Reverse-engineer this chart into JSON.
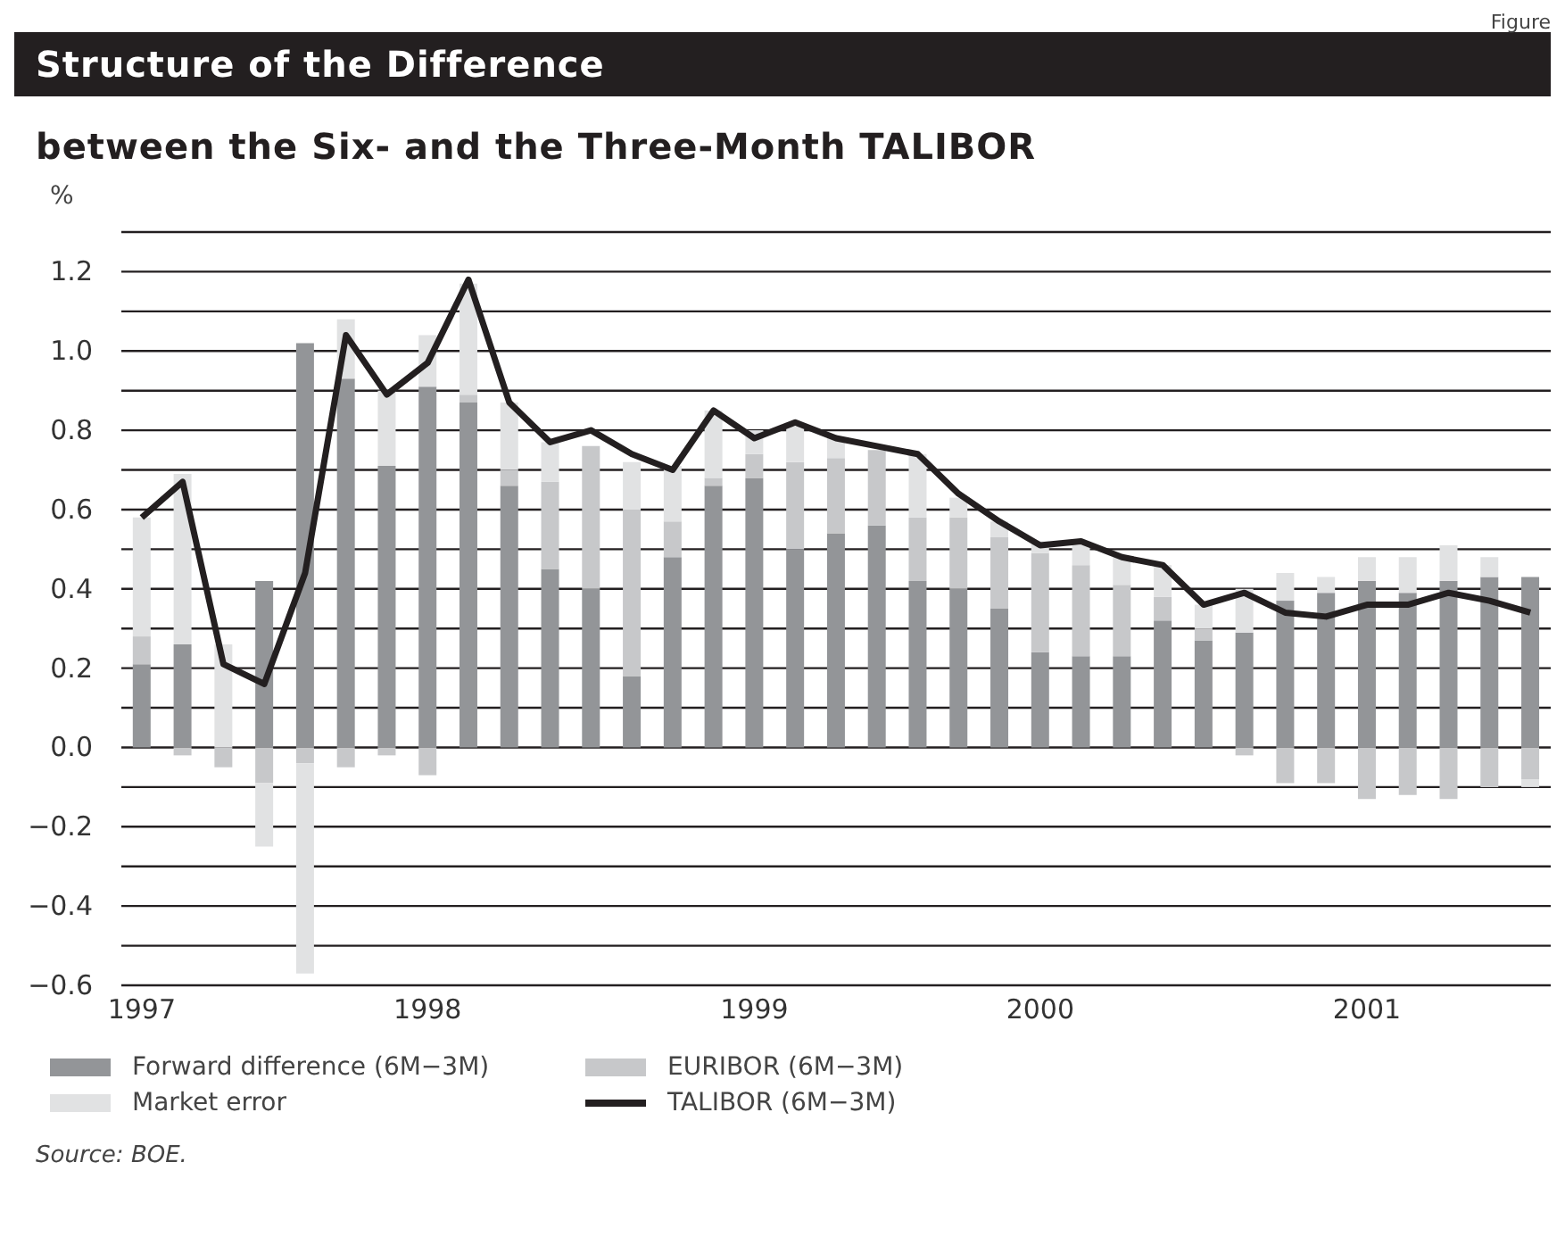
{
  "chart_data": {
    "type": "bar",
    "title": "Structure of the Difference",
    "subtitle": "between the Six- and the Three-Month TALIBOR",
    "ylabel": "%",
    "annotations": [
      "Figure",
      "Source: BOE."
    ],
    "categories": [
      "1997",
      null,
      null,
      null,
      null,
      null,
      null,
      "1998",
      null,
      null,
      null,
      null,
      null,
      null,
      null,
      "1999",
      null,
      null,
      null,
      null,
      null,
      null,
      "2000",
      null,
      null,
      null,
      null,
      null,
      null,
      null,
      "2001",
      null,
      null,
      null,
      null
    ],
    "stacked": true,
    "series": [
      {
        "name": "Forward difference (6M−3M)",
        "color": "#939598",
        "values": [
          0.21,
          0.26,
          0,
          0.42,
          1.02,
          0.93,
          0.71,
          0.91,
          0.87,
          0.66,
          0.45,
          0.4,
          0.18,
          0.48,
          0.66,
          0.68,
          0.5,
          0.54,
          0.56,
          0.42,
          0.4,
          0.35,
          0.24,
          0.23,
          0.23,
          0.32,
          0.27,
          0.29,
          0.37,
          0.39,
          0.42,
          0.39,
          0.42,
          0.43,
          0.43
        ]
      },
      {
        "name": "EURIBOR (6M−3M)",
        "color": "#c7c8ca",
        "values": [
          0.07,
          -0.02,
          -0.05,
          -0.09,
          -0.04,
          -0.05,
          -0.02,
          -0.07,
          0.02,
          0.04,
          0.22,
          0.36,
          0.42,
          0.09,
          0.02,
          0.06,
          0.22,
          0.19,
          0.19,
          0.16,
          0.18,
          0.18,
          0.25,
          0.23,
          0.18,
          0.06,
          0.03,
          -0.02,
          -0.09,
          -0.09,
          -0.13,
          -0.12,
          -0.13,
          -0.1,
          -0.08
        ]
      },
      {
        "name": "Market error",
        "color": "#e1e2e3",
        "values": [
          0.3,
          0.43,
          0.26,
          -0.16,
          -0.53,
          0.15,
          0.19,
          0.13,
          0.28,
          0.17,
          0.1,
          0,
          0.12,
          0.14,
          0.17,
          0.06,
          0.09,
          0.05,
          0,
          0.16,
          0.05,
          0.04,
          0.03,
          0.05,
          0.07,
          0.08,
          0.06,
          0.11,
          0.07,
          0.04,
          0.06,
          0.09,
          0.09,
          0.05,
          -0.02
        ]
      },
      {
        "name": "TALIBOR (6M−3M)",
        "type": "line",
        "color": "#231f20",
        "values": [
          0.58,
          0.67,
          0.21,
          0.16,
          0.44,
          1.04,
          0.89,
          0.97,
          1.18,
          0.87,
          0.77,
          0.8,
          0.74,
          0.7,
          0.85,
          0.78,
          0.82,
          0.78,
          0.76,
          0.74,
          0.64,
          0.57,
          0.51,
          0.52,
          0.48,
          0.46,
          0.36,
          0.39,
          0.34,
          0.33,
          0.36,
          0.36,
          0.39,
          0.37,
          0.34
        ]
      }
    ],
    "ylim": [
      -0.6,
      1.3
    ],
    "yticks": [
      {
        "value": -0.6,
        "label": "−0.6"
      },
      {
        "value": -0.5,
        "label": null
      },
      {
        "value": -0.4,
        "label": "−0.4"
      },
      {
        "value": -0.3,
        "label": null
      },
      {
        "value": -0.2,
        "label": "−0.2"
      },
      {
        "value": -0.1,
        "label": null
      },
      {
        "value": 0,
        "label": "0.0"
      },
      {
        "value": 0.1,
        "label": null
      },
      {
        "value": 0.2,
        "label": "0.2"
      },
      {
        "value": 0.3,
        "label": null
      },
      {
        "value": 0.4,
        "label": "0.4"
      },
      {
        "value": 0.5,
        "label": null
      },
      {
        "value": 0.6,
        "label": "0.6"
      },
      {
        "value": 0.7,
        "label": null
      },
      {
        "value": 0.8,
        "label": "0.8"
      },
      {
        "value": 0.9,
        "label": null
      },
      {
        "value": 1.0,
        "label": "1.0"
      },
      {
        "value": 1.1,
        "label": null
      },
      {
        "value": 1.2,
        "label": "1.2"
      },
      {
        "value": 1.3,
        "label": null
      }
    ],
    "grid": "y",
    "legend": "bottom",
    "marker": "none"
  }
}
